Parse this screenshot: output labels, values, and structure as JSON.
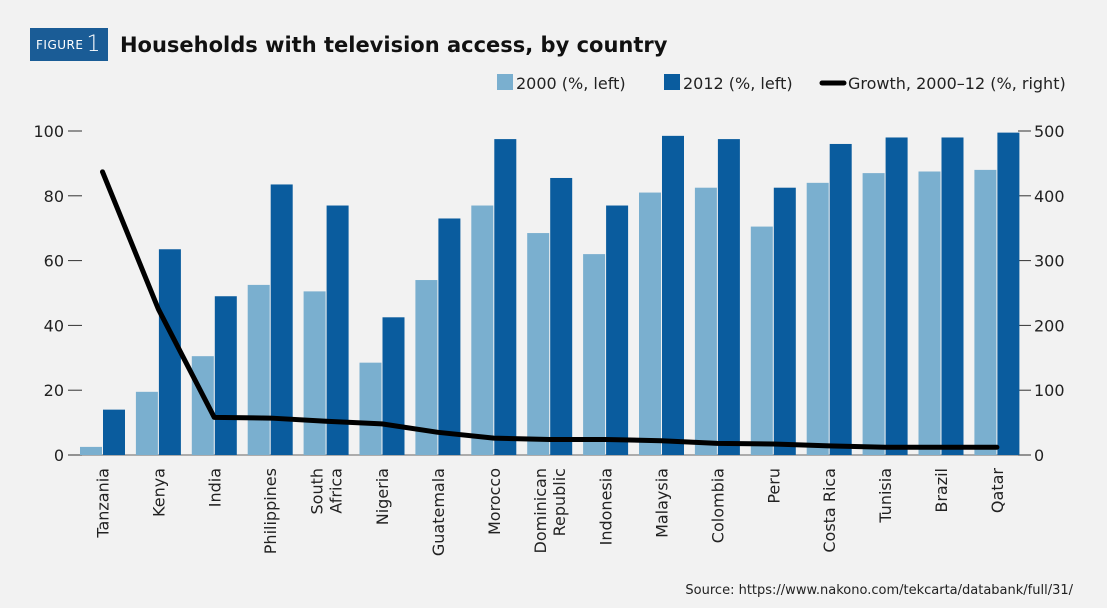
{
  "figure": {
    "tag": "FIGURE",
    "number": "1"
  },
  "source": "Source: https://www.nakono.com/tekcarta/databank/full/31/",
  "colors": {
    "bar2000": "#7aafcf",
    "bar2012": "#0a5c9e",
    "growth": "#000000",
    "tag": "#1a5c96"
  },
  "chart_data": {
    "type": "bar",
    "title": "Households with television access, by country",
    "categories": [
      "Tanzania",
      "Kenya",
      "India",
      "Philippines",
      "South Africa",
      "Nigeria",
      "Guatemala",
      "Morocco",
      "Dominican Republic",
      "Indonesia",
      "Malaysia",
      "Colombia",
      "Peru",
      "Costa Rica",
      "Tunisia",
      "Brazil",
      "Qatar"
    ],
    "category_lines": [
      [
        "Tanzania"
      ],
      [
        "Kenya"
      ],
      [
        "India"
      ],
      [
        "Philippines"
      ],
      [
        "South",
        "Africa"
      ],
      [
        "Nigeria"
      ],
      [
        "Guatemala"
      ],
      [
        "Morocco"
      ],
      [
        "Dominican",
        "Republic"
      ],
      [
        "Indonesia"
      ],
      [
        "Malaysia"
      ],
      [
        "Colombia"
      ],
      [
        "Peru"
      ],
      [
        "Costa Rica"
      ],
      [
        "Tunisia"
      ],
      [
        "Brazil"
      ],
      [
        "Qatar"
      ]
    ],
    "series": [
      {
        "name": "2000 (%, left)",
        "type": "bar",
        "axis": "left",
        "values": [
          2.5,
          19.5,
          30.5,
          52.5,
          50.5,
          28.5,
          54,
          77,
          68.5,
          62,
          81,
          82.5,
          70.5,
          84,
          87,
          87.5,
          88
        ]
      },
      {
        "name": "2012 (%, left)",
        "type": "bar",
        "axis": "left",
        "values": [
          14,
          63.5,
          49,
          83.5,
          77,
          42.5,
          73,
          97.5,
          85.5,
          77,
          98.5,
          97.5,
          82.5,
          96,
          98,
          98,
          99.5
        ]
      },
      {
        "name": "Growth, 2000–12 (%, right)",
        "type": "line",
        "axis": "right",
        "values": [
          437,
          225,
          58,
          57,
          52,
          48,
          35,
          26,
          24,
          24,
          22,
          18,
          17,
          14,
          12,
          12,
          12
        ]
      }
    ],
    "y_left": {
      "min": 0,
      "max": 100,
      "ticks": [
        0,
        20,
        40,
        60,
        80,
        100
      ]
    },
    "y_right": {
      "min": 0,
      "max": 500,
      "ticks": [
        0,
        100,
        200,
        300,
        400,
        500
      ]
    },
    "legend_position": "top-right",
    "grid": false
  }
}
